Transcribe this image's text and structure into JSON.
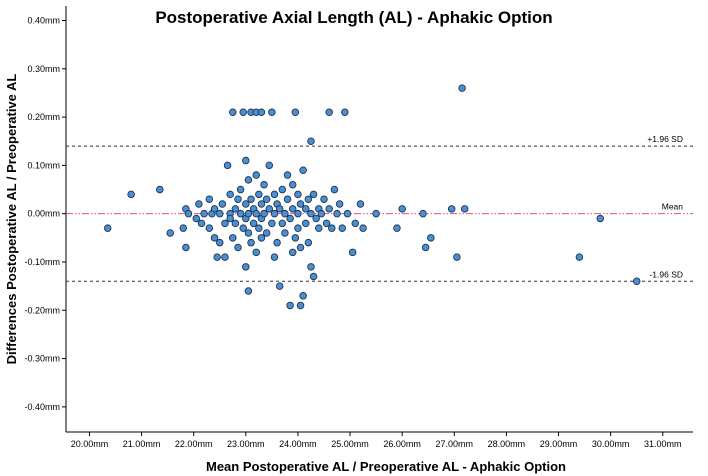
{
  "chart_data": {
    "type": "scatter",
    "title": "Postoperative Axial Length (AL) - Aphakic Option",
    "xlabel": "Mean Postoperative AL / Preoperative AL - Aphakic Option",
    "ylabel": "Differences Postoperative AL / Preoperative AL",
    "xlim": [
      19.55,
      31.58
    ],
    "ylim": [
      -0.452,
      0.43
    ],
    "x_ticks": [
      "20.00mm",
      "21.00mm",
      "22.00mm",
      "23.00mm",
      "24.00mm",
      "25.00mm",
      "26.00mm",
      "27.00mm",
      "28.00mm",
      "29.00mm",
      "30.00mm",
      "31.00mm"
    ],
    "x_tick_values": [
      20,
      21,
      22,
      23,
      24,
      25,
      26,
      27,
      28,
      29,
      30,
      31
    ],
    "y_ticks": [
      "0.40mm",
      "0.30mm",
      "0.20mm",
      "0.10mm",
      "0.00mm",
      "-0.10mm",
      "-0.20mm",
      "-0.30mm",
      "-0.40mm"
    ],
    "y_tick_values": [
      0.4,
      0.3,
      0.2,
      0.1,
      0,
      -0.1,
      -0.2,
      -0.3,
      -0.4
    ],
    "reference_lines": [
      {
        "label": "+1.96 SD",
        "value": 0.14,
        "style": "dashed",
        "color": "#333333"
      },
      {
        "label": "Mean",
        "value": 0.0,
        "style": "dash-dot",
        "color": "#e0508a"
      },
      {
        "label": "-1.96 SD",
        "value": -0.14,
        "style": "dashed",
        "color": "#333333"
      }
    ],
    "marker_color": "#4a8fd4",
    "marker_edge": "#1f3550",
    "grid": false,
    "points": [
      [
        20.35,
        -0.03
      ],
      [
        20.8,
        0.04
      ],
      [
        21.35,
        0.05
      ],
      [
        21.55,
        -0.04
      ],
      [
        21.8,
        -0.03
      ],
      [
        21.85,
        0.01
      ],
      [
        21.85,
        -0.07
      ],
      [
        21.9,
        0.0
      ],
      [
        22.05,
        -0.01
      ],
      [
        22.1,
        0.02
      ],
      [
        22.15,
        -0.02
      ],
      [
        22.2,
        0.0
      ],
      [
        22.3,
        -0.03
      ],
      [
        22.3,
        0.03
      ],
      [
        22.35,
        0.0
      ],
      [
        22.4,
        -0.05
      ],
      [
        22.4,
        0.01
      ],
      [
        22.45,
        -0.09
      ],
      [
        22.5,
        0.0
      ],
      [
        22.5,
        -0.06
      ],
      [
        22.55,
        0.02
      ],
      [
        22.6,
        -0.02
      ],
      [
        22.6,
        -0.09
      ],
      [
        22.65,
        0.1
      ],
      [
        22.7,
        0.0
      ],
      [
        22.7,
        0.04
      ],
      [
        22.7,
        -0.01
      ],
      [
        22.75,
        0.21
      ],
      [
        22.75,
        -0.05
      ],
      [
        22.8,
        0.01
      ],
      [
        22.8,
        -0.02
      ],
      [
        22.85,
        0.03
      ],
      [
        22.85,
        -0.07
      ],
      [
        22.9,
        0.0
      ],
      [
        22.9,
        0.05
      ],
      [
        22.95,
        0.21
      ],
      [
        22.95,
        -0.03
      ],
      [
        23.0,
        0.11
      ],
      [
        23.0,
        0.02
      ],
      [
        23.0,
        -0.01
      ],
      [
        23.0,
        -0.11
      ],
      [
        23.05,
        0.07
      ],
      [
        23.05,
        0.0
      ],
      [
        23.05,
        -0.04
      ],
      [
        23.05,
        -0.16
      ],
      [
        23.1,
        0.21
      ],
      [
        23.1,
        0.03
      ],
      [
        23.1,
        -0.06
      ],
      [
        23.15,
        0.01
      ],
      [
        23.15,
        -0.02
      ],
      [
        23.2,
        0.08
      ],
      [
        23.2,
        0.21
      ],
      [
        23.2,
        0.0
      ],
      [
        23.2,
        -0.08
      ],
      [
        23.25,
        0.04
      ],
      [
        23.25,
        -0.03
      ],
      [
        23.3,
        0.21
      ],
      [
        23.3,
        0.02
      ],
      [
        23.3,
        -0.01
      ],
      [
        23.3,
        -0.05
      ],
      [
        23.35,
        0.0
      ],
      [
        23.35,
        0.06
      ],
      [
        23.4,
        -0.04
      ],
      [
        23.4,
        0.03
      ],
      [
        23.45,
        0.1
      ],
      [
        23.45,
        0.01
      ],
      [
        23.5,
        -0.02
      ],
      [
        23.5,
        0.21
      ],
      [
        23.55,
        0.0
      ],
      [
        23.55,
        -0.09
      ],
      [
        23.55,
        0.04
      ],
      [
        23.6,
        0.02
      ],
      [
        23.6,
        -0.06
      ],
      [
        23.65,
        -0.15
      ],
      [
        23.65,
        0.01
      ],
      [
        23.7,
        -0.02
      ],
      [
        23.7,
        0.05
      ],
      [
        23.75,
        0.0
      ],
      [
        23.75,
        -0.04
      ],
      [
        23.8,
        0.08
      ],
      [
        23.8,
        0.03
      ],
      [
        23.85,
        -0.19
      ],
      [
        23.85,
        -0.01
      ],
      [
        23.9,
        0.06
      ],
      [
        23.9,
        0.01
      ],
      [
        23.9,
        -0.08
      ],
      [
        23.95,
        0.21
      ],
      [
        23.95,
        -0.05
      ],
      [
        24.0,
        0.04
      ],
      [
        24.0,
        0.0
      ],
      [
        24.0,
        -0.03
      ],
      [
        24.05,
        -0.19
      ],
      [
        24.05,
        -0.07
      ],
      [
        24.05,
        0.02
      ],
      [
        24.1,
        0.09
      ],
      [
        24.1,
        -0.17
      ],
      [
        24.15,
        0.01
      ],
      [
        24.15,
        -0.02
      ],
      [
        24.2,
        0.03
      ],
      [
        24.2,
        -0.06
      ],
      [
        24.25,
        0.15
      ],
      [
        24.25,
        0.0
      ],
      [
        24.25,
        -0.11
      ],
      [
        24.3,
        -0.13
      ],
      [
        24.3,
        0.04
      ],
      [
        24.35,
        -0.01
      ],
      [
        24.4,
        0.01
      ],
      [
        24.4,
        -0.03
      ],
      [
        24.45,
        0.0
      ],
      [
        24.5,
        0.03
      ],
      [
        24.55,
        -0.02
      ],
      [
        24.6,
        0.21
      ],
      [
        24.6,
        0.01
      ],
      [
        24.65,
        -0.03
      ],
      [
        24.7,
        0.05
      ],
      [
        24.75,
        0.0
      ],
      [
        24.8,
        0.02
      ],
      [
        24.85,
        -0.03
      ],
      [
        24.9,
        0.21
      ],
      [
        24.95,
        0.0
      ],
      [
        25.05,
        -0.08
      ],
      [
        25.1,
        -0.02
      ],
      [
        25.2,
        0.02
      ],
      [
        25.25,
        -0.03
      ],
      [
        25.5,
        0.0
      ],
      [
        25.9,
        -0.03
      ],
      [
        26.0,
        0.01
      ],
      [
        26.4,
        0.0
      ],
      [
        26.45,
        -0.07
      ],
      [
        26.55,
        -0.05
      ],
      [
        26.95,
        0.01
      ],
      [
        27.05,
        -0.09
      ],
      [
        27.15,
        0.26
      ],
      [
        27.2,
        0.01
      ],
      [
        29.4,
        -0.09
      ],
      [
        29.8,
        -0.01
      ],
      [
        30.5,
        -0.14
      ]
    ]
  }
}
